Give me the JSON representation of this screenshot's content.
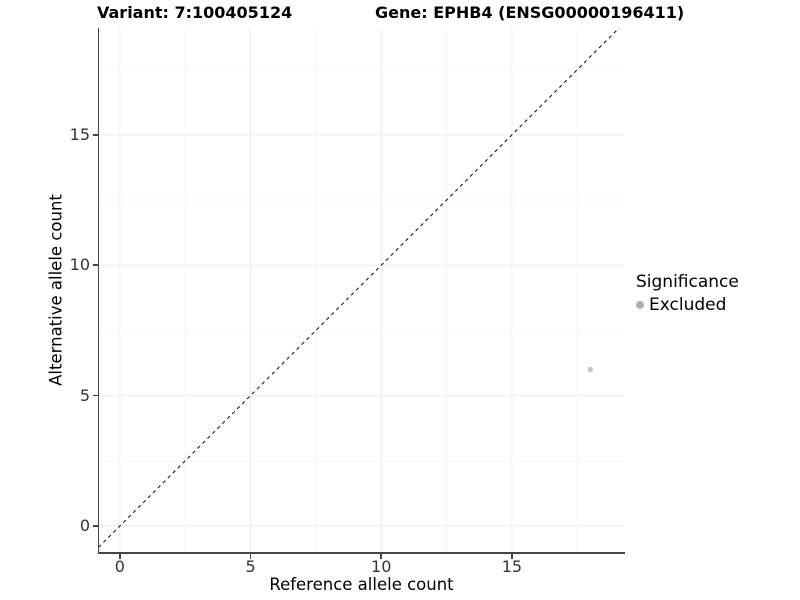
{
  "chart_data": {
    "type": "scatter",
    "titles": {
      "variant": "Variant: 7:100405124",
      "gene": "Gene: EPHB4 (ENSG00000196411)"
    },
    "xlabel": "Reference allele count",
    "ylabel": "Alternative allele count",
    "xlim": [
      -0.8,
      19.29
    ],
    "ylim": [
      -1.0,
      19.1
    ],
    "x_ticks": [
      "0",
      "5",
      "10",
      "15"
    ],
    "x_tick_values": [
      0,
      5,
      10,
      15
    ],
    "x_minor_values": [
      2.5,
      7.5,
      12.5,
      17.5
    ],
    "y_ticks": [
      "0",
      "5",
      "10",
      "15"
    ],
    "y_tick_values": [
      0,
      5,
      10,
      15
    ],
    "y_minor_values": [
      2.5,
      7.5,
      12.5,
      17.5
    ],
    "grid": "major+minor",
    "series": [
      {
        "name": "Excluded",
        "color": "#c3c3c3",
        "marker": "circle",
        "points": [
          {
            "x": 18,
            "y": 6
          }
        ]
      }
    ],
    "reference_line": {
      "kind": "identity y=x",
      "style": "dashed",
      "color": "#1a1a1a"
    },
    "legend": {
      "title": "Significance",
      "position": "right",
      "entries": [
        {
          "label": "Excluded",
          "color": "#b0b0b0",
          "marker": "circle"
        }
      ]
    },
    "colors": {
      "axis_line": "#464646",
      "tick_label": "#333333",
      "grid_major": "#ebebeb",
      "grid_minor": "#f4f4f4",
      "background": "#ffffff"
    }
  }
}
